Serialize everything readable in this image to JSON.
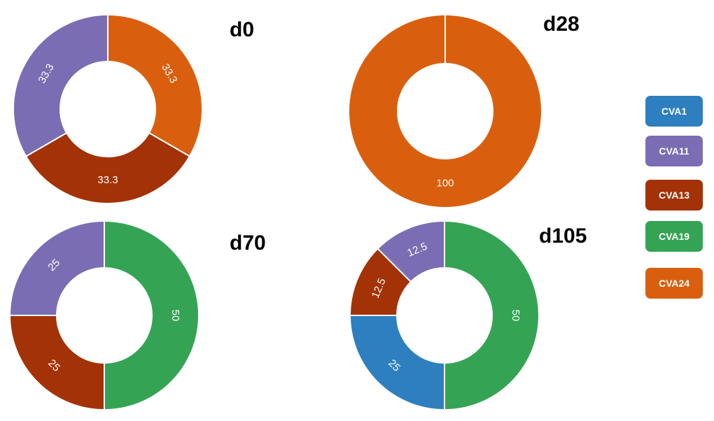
{
  "colors": {
    "CVA1": "#2e7fbf",
    "CVA11": "#7a6db3",
    "CVA13": "#a33206",
    "CVA19": "#34a454",
    "CVA24": "#d95f0e"
  },
  "legend": {
    "items": [
      "CVA1",
      "CVA11",
      "CVA13",
      "CVA19",
      "CVA24"
    ]
  },
  "chart_data": [
    {
      "type": "pie",
      "title": "d0",
      "slices": [
        {
          "name": "CVA24",
          "value": 33.3,
          "label": "33.3"
        },
        {
          "name": "CVA13",
          "value": 33.3,
          "label": "33.3"
        },
        {
          "name": "CVA11",
          "value": 33.3,
          "label": "33.3"
        }
      ]
    },
    {
      "type": "pie",
      "title": "d28",
      "slices": [
        {
          "name": "CVA24",
          "value": 100,
          "label": "100"
        }
      ]
    },
    {
      "type": "pie",
      "title": "d70",
      "slices": [
        {
          "name": "CVA19",
          "value": 50,
          "label": "50"
        },
        {
          "name": "CVA13",
          "value": 25,
          "label": "25"
        },
        {
          "name": "CVA11",
          "value": 25,
          "label": "25"
        }
      ]
    },
    {
      "type": "pie",
      "title": "d105",
      "slices": [
        {
          "name": "CVA19",
          "value": 50,
          "label": "50"
        },
        {
          "name": "CVA1",
          "value": 25,
          "label": "25"
        },
        {
          "name": "CVA13",
          "value": 12.5,
          "label": "12.5"
        },
        {
          "name": "CVA11",
          "value": 12.5,
          "label": "12.5"
        }
      ]
    }
  ]
}
